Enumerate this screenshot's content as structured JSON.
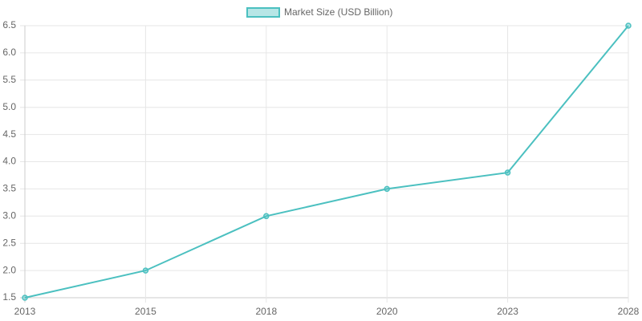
{
  "chart_data": {
    "type": "line",
    "categories": [
      "2013",
      "2015",
      "2018",
      "2020",
      "2023",
      "2028"
    ],
    "series": [
      {
        "name": "Market Size (USD Billion)",
        "color": "#4bc0c0",
        "values": [
          1.5,
          2.0,
          3.0,
          3.5,
          3.8,
          6.5
        ]
      }
    ],
    "ylim": [
      1.5,
      6.5
    ],
    "yticks": [
      1.5,
      {
        "value": 2,
        "label": "2.0"
      },
      2.5,
      {
        "value": 3,
        "label": "3.0"
      },
      3.5,
      {
        "value": 4,
        "label": "4.0"
      },
      4.5,
      {
        "value": 5,
        "label": "5.0"
      },
      5.5,
      {
        "value": 6,
        "label": "6.0"
      },
      6.5
    ],
    "grid": true,
    "legend": "top"
  }
}
